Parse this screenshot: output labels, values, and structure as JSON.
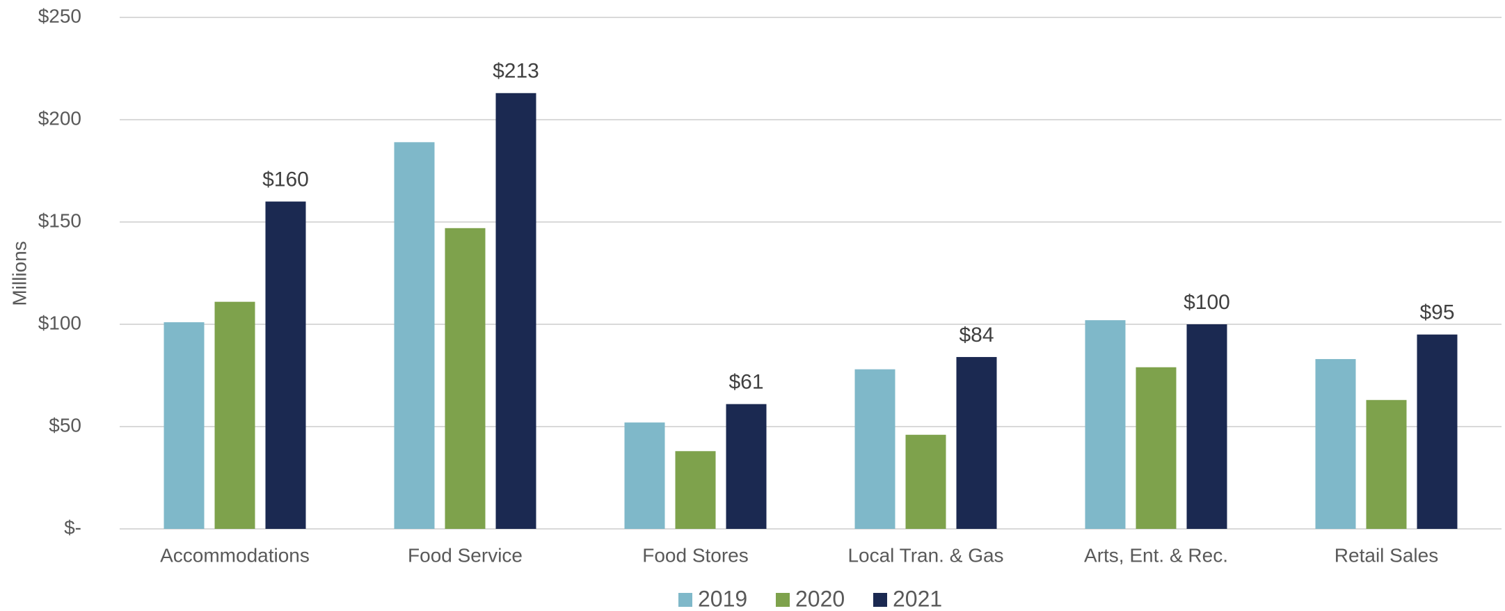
{
  "chart_data": {
    "type": "bar",
    "y_label": "Millions",
    "categories": [
      "Accommodations",
      "Food Service",
      "Food Stores",
      "Local Tran. & Gas",
      "Arts, Ent. & Rec.",
      "Retail Sales"
    ],
    "series": [
      {
        "name": "2019",
        "color": "#7fb8c9",
        "values": [
          101,
          189,
          52,
          78,
          102,
          83
        ]
      },
      {
        "name": "2020",
        "color": "#7ea24c",
        "values": [
          111,
          147,
          38,
          46,
          79,
          63
        ]
      },
      {
        "name": "2021",
        "color": "#1b2951",
        "values": [
          160,
          213,
          61,
          84,
          100,
          95
        ],
        "value_labels": [
          "$160",
          "$213",
          "$61",
          "$84",
          "$100",
          "$95"
        ]
      }
    ],
    "ylim": [
      0,
      250
    ],
    "yticks": [
      {
        "value": 0,
        "label": "$-"
      },
      {
        "value": 50,
        "label": "$50"
      },
      {
        "value": 100,
        "label": "$100"
      },
      {
        "value": 150,
        "label": "$150"
      },
      {
        "value": 200,
        "label": "$200"
      },
      {
        "value": 250,
        "label": "$250"
      }
    ],
    "grid": true,
    "legend": "bottom"
  }
}
